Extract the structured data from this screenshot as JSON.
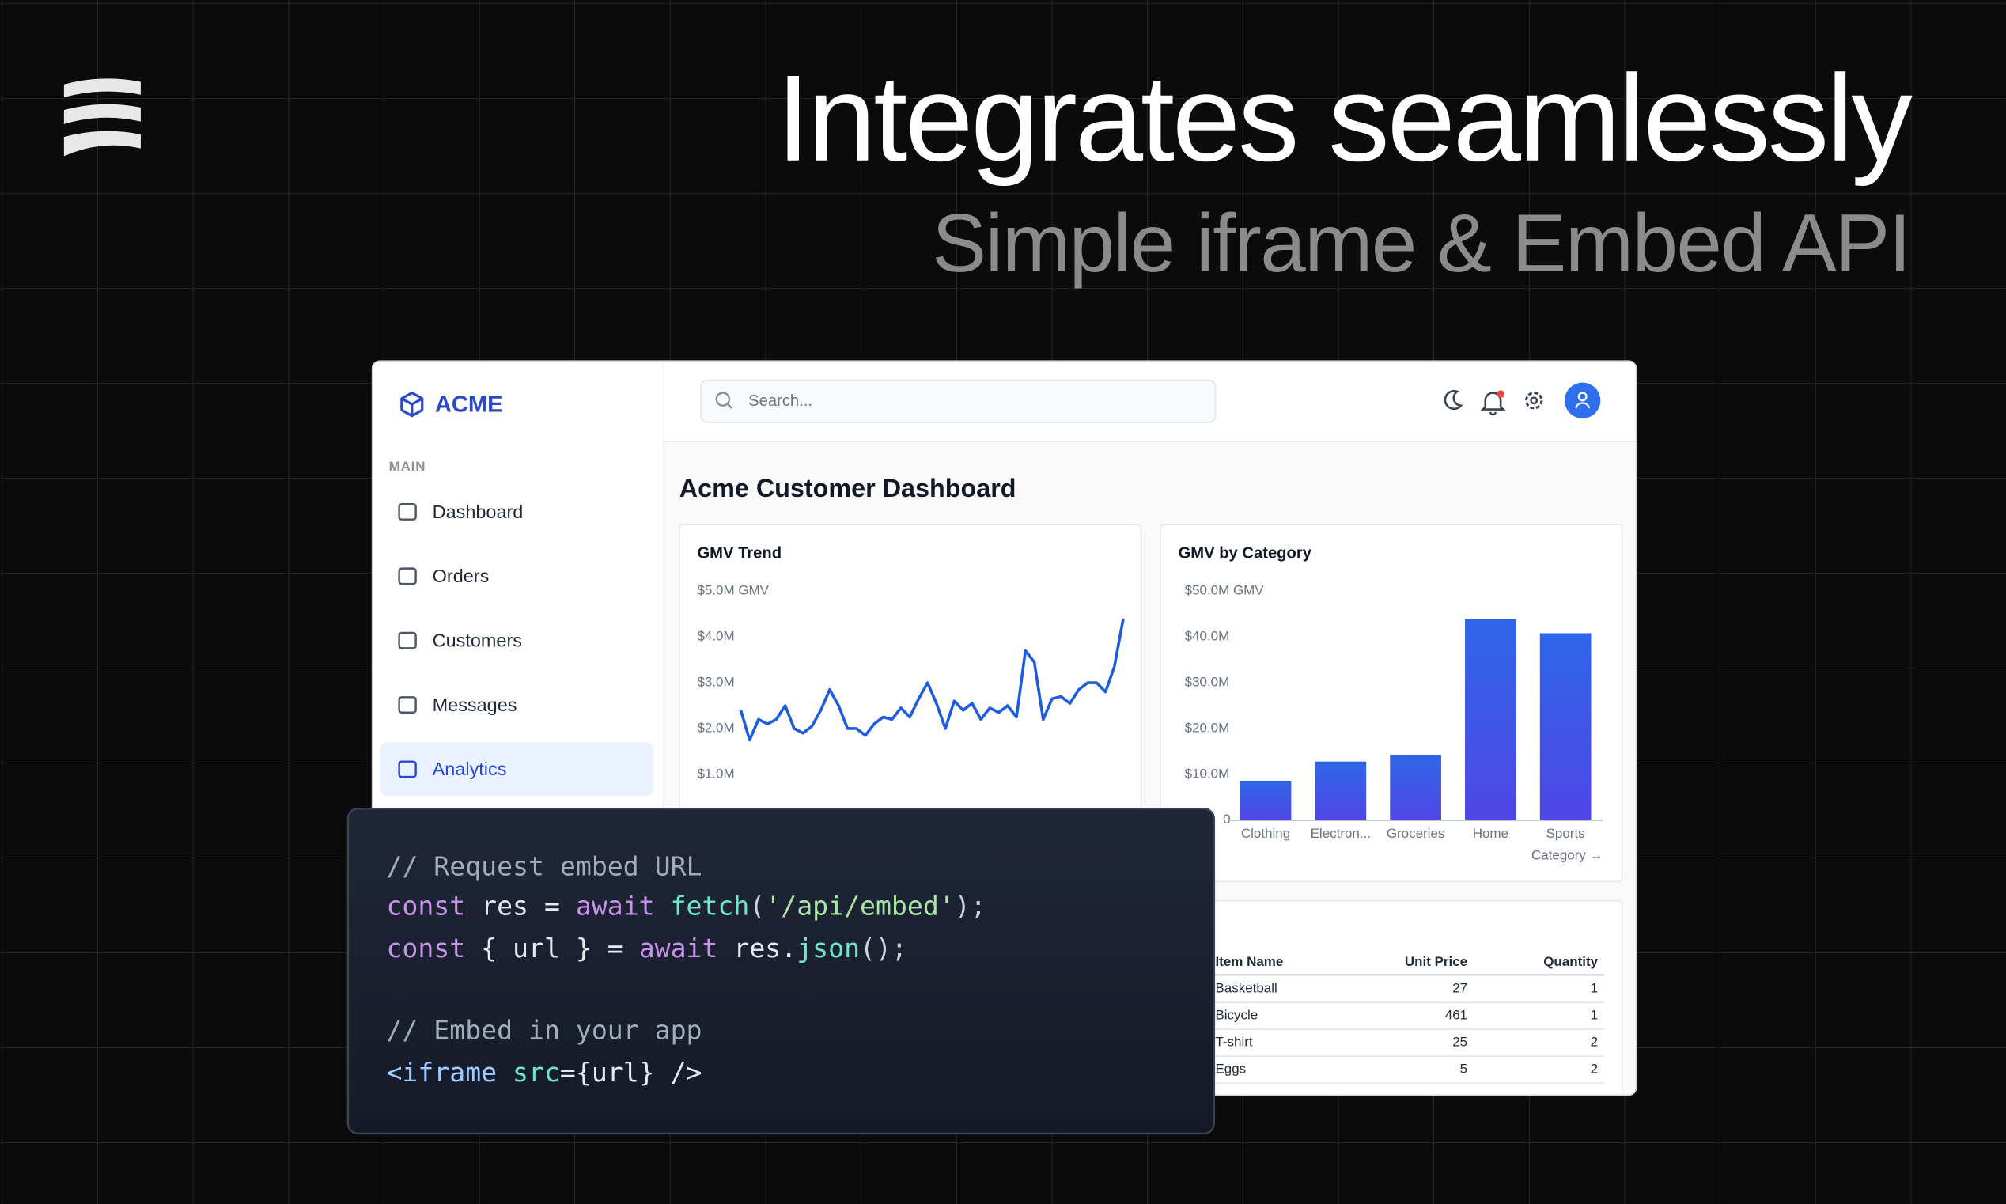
{
  "header": {
    "title": "Integrates seamlessly",
    "subtitle": "Simple iframe & Embed API"
  },
  "app": {
    "brand": "ACME",
    "search_placeholder": "Search...",
    "nav_section": "MAIN",
    "nav": [
      "Dashboard",
      "Orders",
      "Customers",
      "Messages",
      "Analytics"
    ],
    "active_nav": 4,
    "dashboard_title": "Acme Customer Dashboard"
  },
  "chart_data": [
    {
      "type": "line",
      "title": "GMV Trend",
      "color": "#1d5be0",
      "values": [
        2.4,
        1.75,
        2.2,
        2.1,
        2.2,
        2.5,
        2.0,
        1.9,
        2.05,
        2.4,
        2.85,
        2.5,
        2.0,
        2.0,
        1.85,
        2.1,
        2.25,
        2.2,
        2.45,
        2.25,
        2.65,
        3.0,
        2.55,
        2.0,
        2.6,
        2.4,
        2.55,
        2.2,
        2.45,
        2.35,
        2.5,
        2.25,
        3.7,
        3.45,
        2.2,
        2.65,
        2.7,
        2.55,
        2.85,
        3.0,
        3.0,
        2.8,
        3.35,
        4.4
      ],
      "ylim": [
        0,
        5
      ],
      "yticks": [
        {
          "value": 1,
          "label": "$1.0M"
        },
        {
          "value": 2,
          "label": "$2.0M"
        },
        {
          "value": 3,
          "label": "$3.0M"
        },
        {
          "value": 4,
          "label": "$4.0M"
        },
        {
          "value": 5,
          "label": "$5.0M GMV"
        }
      ]
    },
    {
      "type": "bar",
      "title": "GMV by Category",
      "x_label": "Category →",
      "color": "#3b5ce8",
      "categories": [
        "Clothing",
        "Electron...",
        "Groceries",
        "Home",
        "Sports"
      ],
      "values": [
        8.6,
        12.8,
        14.2,
        43.9,
        40.8
      ],
      "ylim": [
        0,
        50
      ],
      "yticks": [
        0,
        {
          "value": 10,
          "label": "$10.0M"
        },
        {
          "value": 20,
          "label": "$20.0M"
        },
        {
          "value": 30,
          "label": "$30.0M"
        },
        {
          "value": 40,
          "label": "$40.0M"
        },
        {
          "value": 50,
          "label": "$50.0M GMV"
        }
      ]
    }
  ],
  "table": {
    "columns": [
      "Item Name",
      "Unit Price",
      "Quantity"
    ],
    "rows": [
      [
        "Basketball",
        "27",
        "1"
      ],
      [
        "Bicycle",
        "461",
        "1"
      ],
      [
        "T-shirt",
        "25",
        "2"
      ],
      [
        "Eggs",
        "5",
        "2"
      ]
    ]
  },
  "code": {
    "lines": [
      [
        {
          "text": "// Request embed URL",
          "color": "#a3abbd"
        }
      ],
      [
        {
          "text": "const",
          "color": "#c792ea"
        },
        {
          "text": " res = ",
          "color": "#e6e9f0"
        },
        {
          "text": "await",
          "color": "#c792ea"
        },
        {
          "text": " fetch",
          "color": "#6ee7c8"
        },
        {
          "text": "(",
          "color": "#cdd3de"
        },
        {
          "text": "'/api/embed'",
          "color": "#a8e6a3"
        },
        {
          "text": ");",
          "color": "#cdd3de"
        }
      ],
      [
        {
          "text": "const",
          "color": "#c792ea"
        },
        {
          "text": " { url } = ",
          "color": "#e6e9f0"
        },
        {
          "text": "await",
          "color": "#c792ea"
        },
        {
          "text": " res.",
          "color": "#e6e9f0"
        },
        {
          "text": "json",
          "color": "#6ee7c8"
        },
        {
          "text": "();",
          "color": "#cdd3de"
        }
      ],
      [
        {
          "text": "// Embed in your app",
          "color": "#a3abbd"
        }
      ],
      [
        {
          "text": "<iframe",
          "color": "#9ecbff"
        },
        {
          "text": " src",
          "color": "#6ee7c8"
        },
        {
          "text": "={url} />",
          "color": "#e6e9f0"
        }
      ]
    ]
  }
}
